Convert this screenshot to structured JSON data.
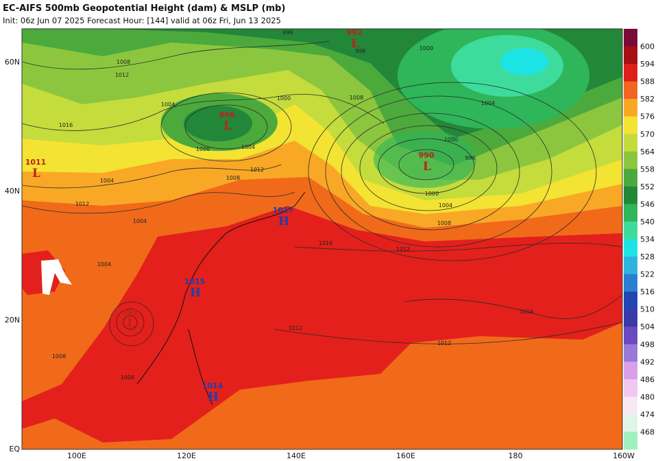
{
  "header": {
    "title": "EC-AIFS 500mb Geopotential Height (dam) & MSLP (mb)",
    "subtitle": "Init: 06z Jun 07 2025   Forecast Hour: [144]   valid at 06z Fri, Jun 13 2025"
  },
  "map": {
    "lat_labels": [
      "60N",
      "40N",
      "20N",
      "EQ"
    ],
    "lon_labels": [
      "100E",
      "120E",
      "140E",
      "160E",
      "180",
      "160W"
    ],
    "systems": [
      {
        "letter": "L",
        "value": "992"
      },
      {
        "letter": "L",
        "value": "996"
      },
      {
        "letter": "L",
        "value": "1011"
      },
      {
        "letter": "L",
        "value": "990"
      },
      {
        "letter": "H",
        "value": "1017"
      },
      {
        "letter": "H",
        "value": "1015"
      },
      {
        "letter": "L",
        "value": "991"
      },
      {
        "letter": "H",
        "value": "1014"
      }
    ],
    "contour_labels": [
      "1008",
      "1012",
      "1016",
      "1004",
      "1000",
      "1004",
      "1012",
      "1008",
      "1004",
      "1012",
      "1004",
      "1004",
      "1008",
      "1000",
      "1000",
      "996",
      "1000",
      "1004",
      "1008",
      "1012",
      "1016",
      "1016",
      "1012",
      "1012",
      "1008",
      "1008",
      "1004",
      "1000",
      "996",
      "996"
    ]
  },
  "colorbar": {
    "levels": [
      600,
      594,
      588,
      582,
      576,
      570,
      564,
      558,
      552,
      546,
      540,
      534,
      528,
      522,
      516,
      510,
      504,
      498,
      492,
      486,
      480,
      474,
      468
    ]
  }
}
